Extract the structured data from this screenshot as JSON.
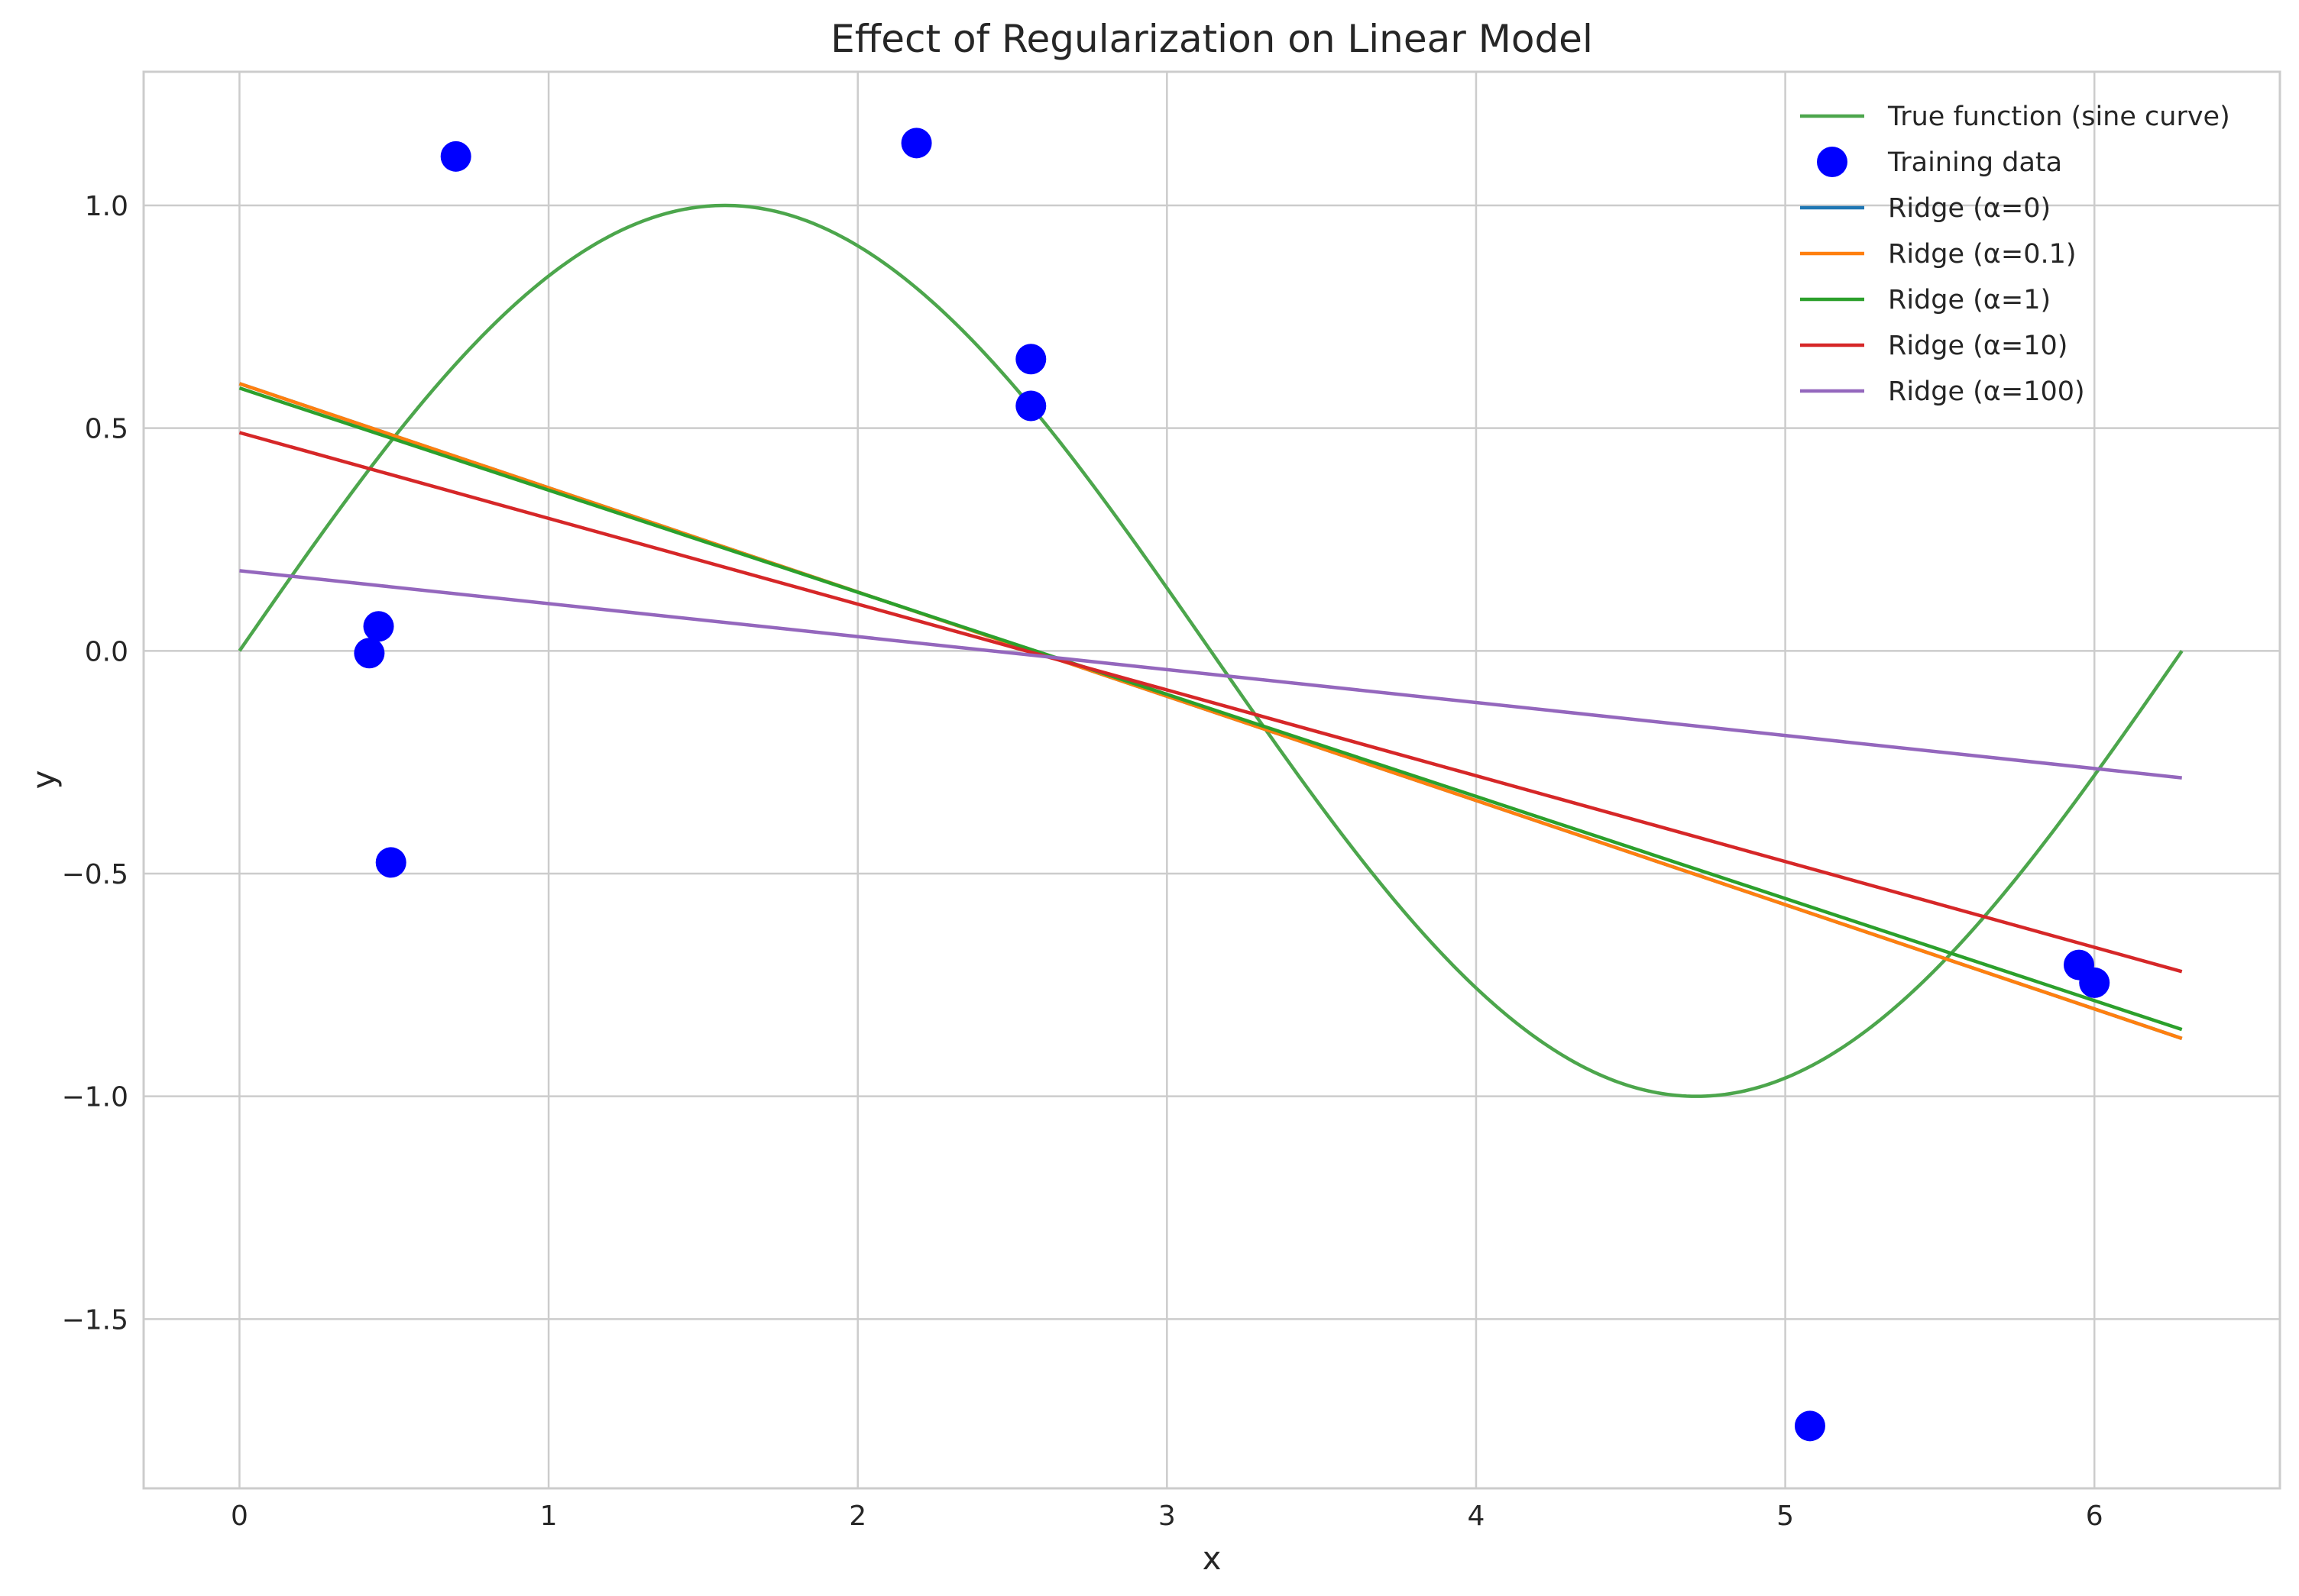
{
  "chart_data": {
    "type": "line",
    "title": "Effect of Regularization on Linear Model",
    "xlabel": "x",
    "ylabel": "y",
    "xlim": [
      -0.31,
      6.6
    ],
    "ylim": [
      -1.88,
      1.3
    ],
    "grid": true,
    "legend_position": "top-right",
    "x_ticks": [
      0,
      1,
      2,
      3,
      4,
      5,
      6
    ],
    "x_tick_labels": [
      "0",
      "1",
      "2",
      "3",
      "4",
      "5",
      "6"
    ],
    "y_ticks": [
      -1.5,
      -1.0,
      -0.5,
      0.0,
      0.5,
      1.0
    ],
    "y_tick_labels": [
      "−1.5",
      "−1.0",
      "−0.5",
      "0.0",
      "0.5",
      "1.0"
    ],
    "true_function": {
      "name": "True function (sine curve)",
      "color": "#4ca64c",
      "x_range": [
        0,
        6.283
      ],
      "formula": "sin(x)"
    },
    "training_data": {
      "name": "Training data",
      "color": "#0000ff",
      "points": [
        [
          0.7,
          1.11
        ],
        [
          2.19,
          1.14
        ],
        [
          2.56,
          0.655
        ],
        [
          2.56,
          0.55
        ],
        [
          0.45,
          0.055
        ],
        [
          0.42,
          -0.005
        ],
        [
          0.49,
          -0.475
        ],
        [
          5.08,
          -1.74
        ],
        [
          5.95,
          -0.705
        ],
        [
          6.0,
          -0.745
        ]
      ]
    },
    "series": [
      {
        "name": "Ridge (α=0)",
        "color": "#1f77b4",
        "x": [
          0,
          6.283
        ],
        "y": [
          0.6,
          -0.87
        ]
      },
      {
        "name": "Ridge (α=0.1)",
        "color": "#ff7f0e",
        "x": [
          0,
          6.283
        ],
        "y": [
          0.6,
          -0.87
        ]
      },
      {
        "name": "Ridge (α=1)",
        "color": "#2ca02c",
        "x": [
          0,
          6.283
        ],
        "y": [
          0.59,
          -0.85
        ]
      },
      {
        "name": "Ridge (α=10)",
        "color": "#d62728",
        "x": [
          0,
          6.283
        ],
        "y": [
          0.49,
          -0.72
        ]
      },
      {
        "name": "Ridge (α=100)",
        "color": "#9467bd",
        "x": [
          0,
          6.283
        ],
        "y": [
          0.18,
          -0.285
        ]
      }
    ]
  }
}
